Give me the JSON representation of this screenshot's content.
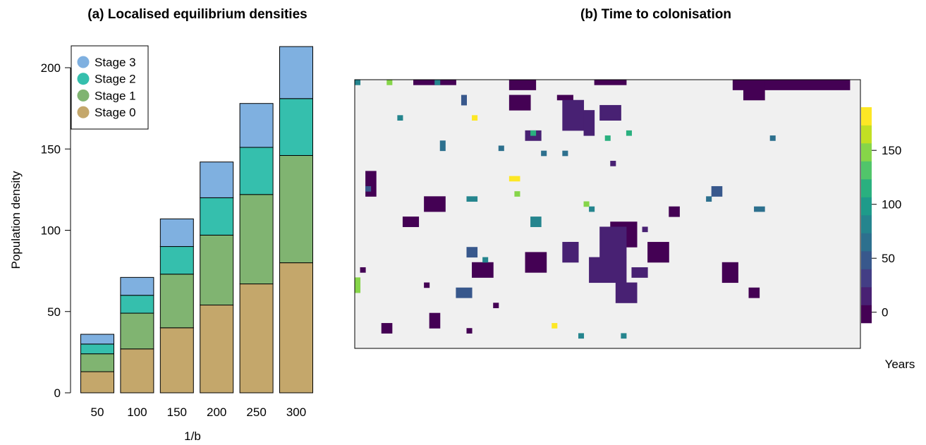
{
  "chart_data": [
    {
      "type": "bar",
      "stacked": true,
      "title": "(a) Localised equilibrium densities",
      "xlabel": "1/b",
      "ylabel": "Population density",
      "categories": [
        "50",
        "100",
        "150",
        "200",
        "250",
        "300"
      ],
      "ylim": [
        0,
        215
      ],
      "yticks": [
        "0",
        "50",
        "100",
        "150",
        "200"
      ],
      "legend_position": "top-left",
      "series": [
        {
          "name": "Stage 0",
          "color": "#c4a76b",
          "values": [
            13,
            27,
            40,
            54,
            67,
            80
          ]
        },
        {
          "name": "Stage 1",
          "color": "#80b471",
          "values": [
            11,
            22,
            33,
            43,
            55,
            66
          ]
        },
        {
          "name": "Stage 2",
          "color": "#35bfad",
          "values": [
            6,
            11,
            17,
            23,
            29,
            35
          ]
        },
        {
          "name": "Stage 3",
          "color": "#7fb0e0",
          "values": [
            6,
            11,
            17,
            22,
            27,
            32
          ]
        }
      ]
    },
    {
      "type": "heatmap",
      "title": "(b)  Time to colonisation",
      "background_color": "#f0f0f0",
      "colorbar": {
        "label": "Years",
        "range": [
          -10,
          190
        ],
        "ticks": [
          "0",
          "50",
          "100",
          "150"
        ],
        "colors": [
          "#440154",
          "#482173",
          "#433e85",
          "#38588c",
          "#2d708e",
          "#25858e",
          "#1e9b8a",
          "#2ab07f",
          "#51c56a",
          "#86d549",
          "#c2df23",
          "#fde725"
        ]
      },
      "patches": [
        {
          "value": 0,
          "blobs": [
            [
              12,
              1,
              8,
              1
            ],
            [
              30,
              1,
              5,
              2
            ],
            [
              46,
              1,
              6,
              1
            ],
            [
              72,
              1,
              22,
              2
            ],
            [
              30,
              4,
              4,
              3
            ],
            [
              39,
              4,
              3,
              1
            ],
            [
              3,
              19,
              2,
              5
            ],
            [
              14,
              24,
              4,
              3
            ],
            [
              10,
              28,
              3,
              2
            ],
            [
              2,
              38,
              1,
              1
            ],
            [
              23,
              37,
              4,
              3
            ],
            [
              33,
              35,
              4,
              4
            ],
            [
              41,
              33,
              2,
              3
            ],
            [
              15,
              47,
              2,
              3
            ],
            [
              49,
              29,
              5,
              5
            ],
            [
              60,
              26,
              2,
              2
            ],
            [
              56,
              33,
              4,
              4
            ],
            [
              70,
              37,
              3,
              4
            ],
            [
              75,
              42,
              2,
              2
            ],
            [
              14,
              41,
              1,
              1
            ],
            [
              6,
              49,
              2,
              2
            ],
            [
              22,
              50,
              1,
              1
            ],
            [
              27,
              45,
              1,
              1
            ],
            [
              74,
              1,
              4,
              4
            ]
          ]
        },
        {
          "value": 10,
          "blobs": [
            [
              40,
              5,
              4,
              6
            ],
            [
              44,
              7,
              2,
              5
            ],
            [
              47,
              6,
              4,
              3
            ],
            [
              33,
              11,
              3,
              2
            ],
            [
              49,
              17,
              1,
              1
            ],
            [
              40,
              33,
              3,
              4
            ],
            [
              47,
              30,
              5,
              6
            ],
            [
              45,
              36,
              7,
              5
            ],
            [
              50,
              41,
              4,
              4
            ],
            [
              53,
              38,
              3,
              2
            ],
            [
              55,
              30,
              1,
              1
            ]
          ]
        },
        {
          "value": 40,
          "blobs": [
            [
              21,
              4,
              1,
              2
            ],
            [
              68,
              22,
              2,
              2
            ],
            [
              22,
              34,
              2,
              2
            ],
            [
              20,
              42,
              3,
              2
            ],
            [
              3,
              22,
              1,
              1
            ]
          ]
        },
        {
          "value": 60,
          "blobs": [
            [
              17,
              13,
              1,
              2
            ],
            [
              28,
              14,
              1,
              1
            ],
            [
              36,
              15,
              1,
              1
            ],
            [
              40,
              15,
              1,
              1
            ],
            [
              79,
              12,
              1,
              1
            ],
            [
              67,
              24,
              1,
              1
            ],
            [
              76,
              26,
              2,
              1
            ]
          ]
        },
        {
          "value": 80,
          "blobs": [
            [
              1,
              1,
              1,
              1
            ],
            [
              9,
              8,
              1,
              1
            ],
            [
              16,
              1,
              1,
              1
            ],
            [
              22,
              24,
              2,
              1
            ],
            [
              45,
              26,
              1,
              1
            ],
            [
              34,
              28,
              2,
              2
            ],
            [
              25,
              36,
              1,
              1
            ],
            [
              43,
              51,
              1,
              1
            ],
            [
              51,
              51,
              1,
              1
            ]
          ]
        },
        {
          "value": 110,
          "blobs": [
            [
              34,
              11,
              1,
              1
            ],
            [
              52,
              11,
              1,
              1
            ],
            [
              48,
              12,
              1,
              1
            ]
          ]
        },
        {
          "value": 140,
          "blobs": [
            [
              7,
              1,
              1,
              1
            ],
            [
              31,
              23,
              1,
              1
            ],
            [
              44,
              25,
              1,
              1
            ]
          ]
        },
        {
          "value": 150,
          "blobs": [
            [
              1,
              40,
              1,
              3
            ]
          ]
        },
        {
          "value": 180,
          "blobs": [
            [
              23,
              8,
              1,
              1
            ],
            [
              30,
              20,
              2,
              1
            ],
            [
              38,
              49,
              1,
              1
            ]
          ]
        }
      ]
    }
  ]
}
